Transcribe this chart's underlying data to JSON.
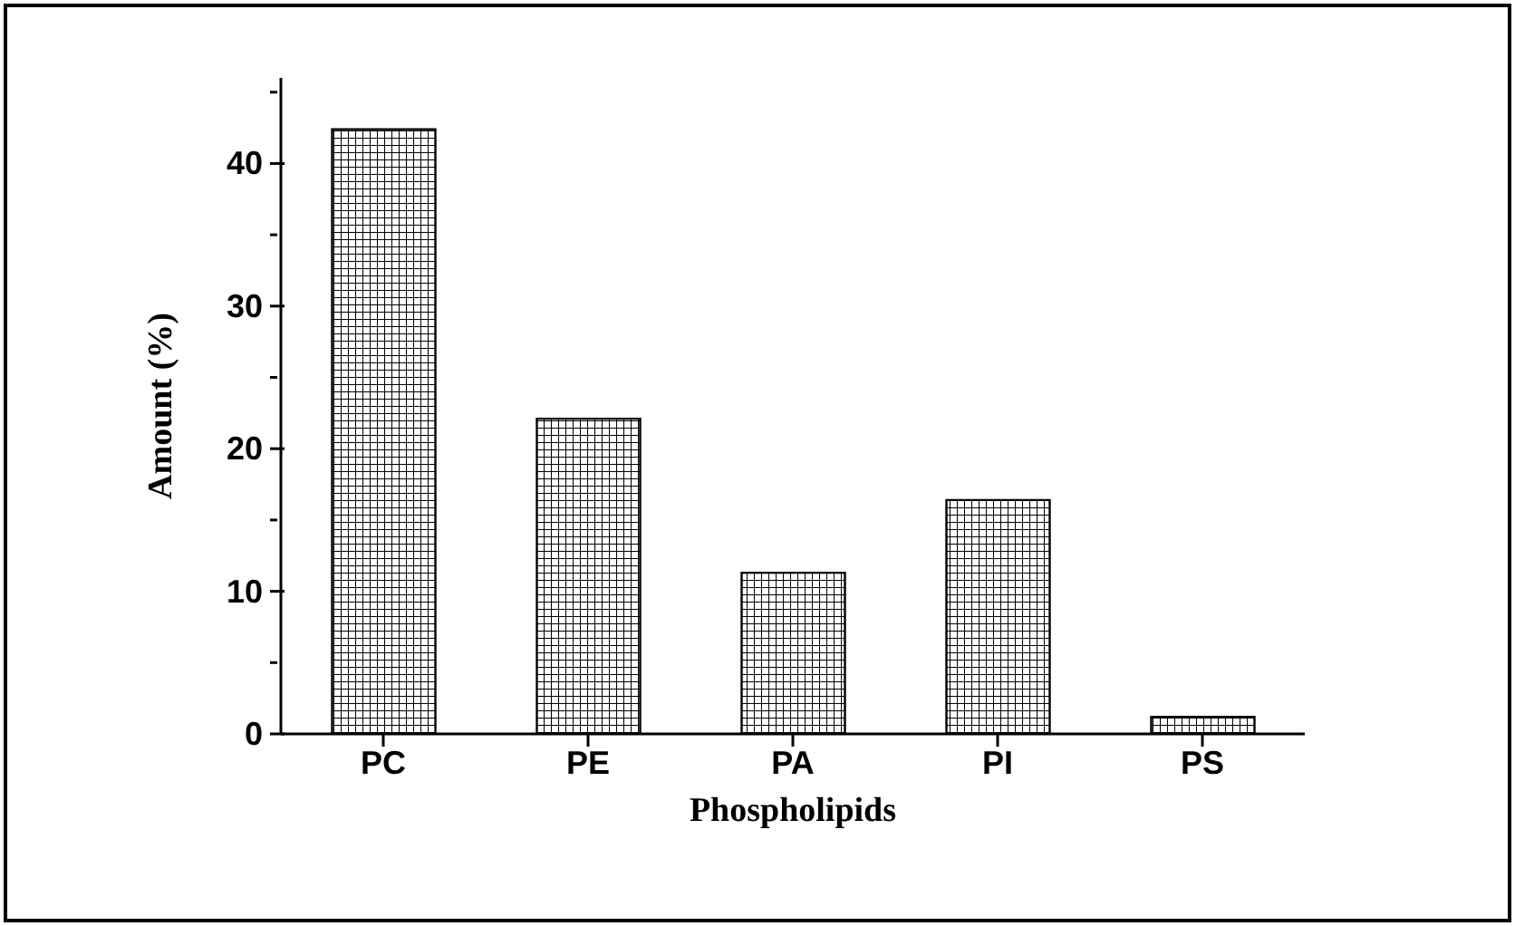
{
  "chart_data": {
    "type": "bar",
    "xlabel": "Phospholipids",
    "ylabel": "Amount (%)",
    "categories": [
      "PC",
      "PE",
      "PA",
      "PI",
      "PS"
    ],
    "series": [
      {
        "color": "#000000",
        "values": [
          42.4,
          22.1,
          11.3,
          16.4,
          1.2
        ]
      }
    ],
    "ylim": [
      0,
      46
    ],
    "yticks": [
      0,
      {
        "value": 5,
        "label": null
      },
      10,
      {
        "value": 15,
        "label": null
      },
      20,
      {
        "value": 25,
        "label": null
      },
      30,
      {
        "value": 35,
        "label": null
      },
      40,
      {
        "value": 45,
        "label": null
      }
    ],
    "grid": false,
    "legend": false
  }
}
